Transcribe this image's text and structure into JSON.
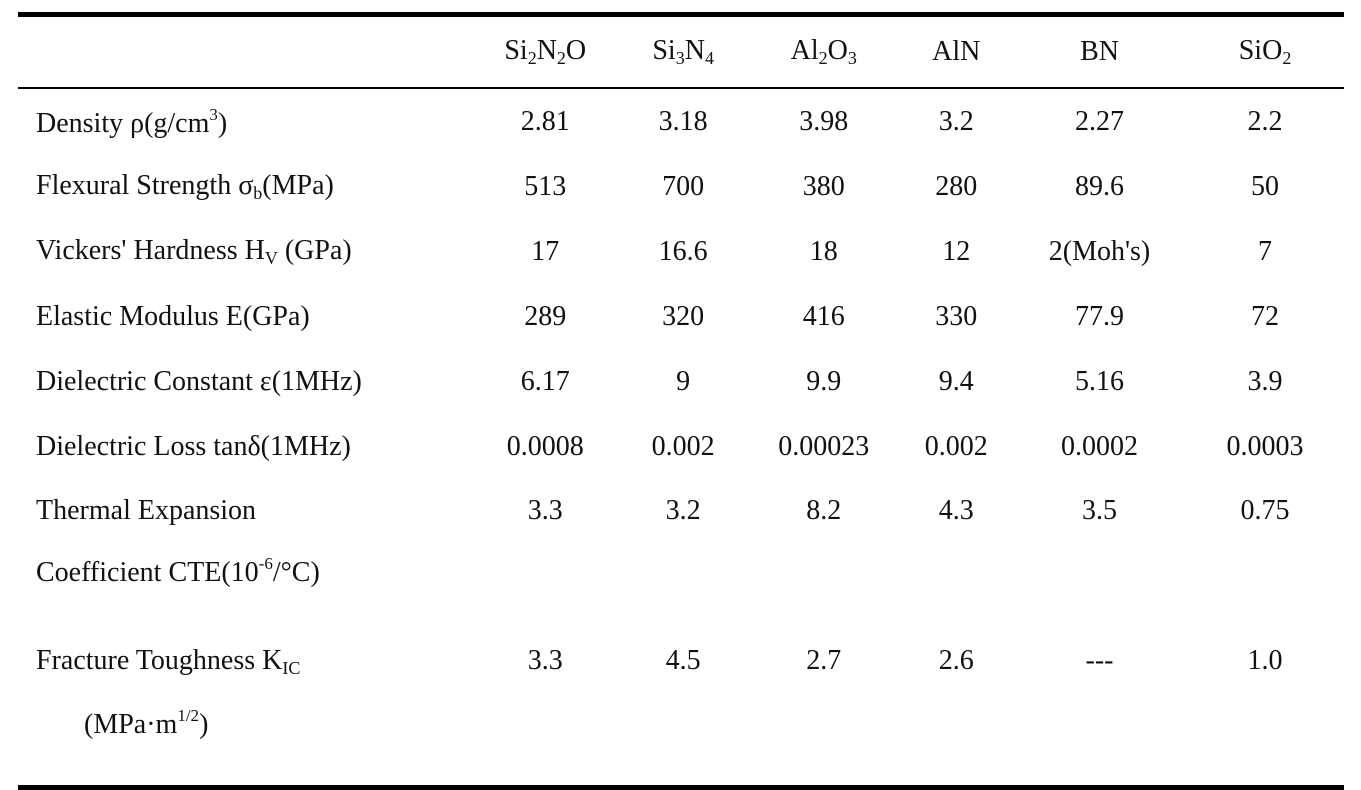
{
  "table": {
    "headers": [
      {
        "base": "Si",
        "parts": [
          [
            "Si",
            ""
          ],
          [
            "2",
            "sub"
          ],
          [
            "N",
            ""
          ],
          [
            "2",
            "sub"
          ],
          [
            "O",
            ""
          ]
        ]
      },
      {
        "base": "Si",
        "parts": [
          [
            "Si",
            ""
          ],
          [
            "3",
            "sub"
          ],
          [
            "N",
            ""
          ],
          [
            "4",
            "sub"
          ]
        ]
      },
      {
        "base": "Al",
        "parts": [
          [
            "Al",
            ""
          ],
          [
            "2",
            "sub"
          ],
          [
            "O",
            ""
          ],
          [
            "3",
            "sub"
          ]
        ]
      },
      {
        "base": "AlN",
        "parts": [
          [
            "AlN",
            ""
          ]
        ]
      },
      {
        "base": "BN",
        "parts": [
          [
            "BN",
            ""
          ]
        ]
      },
      {
        "base": "SiO",
        "parts": [
          [
            "SiO",
            ""
          ],
          [
            "2",
            "sub"
          ]
        ]
      }
    ],
    "rows": [
      {
        "label": [
          [
            "Density ρ(g/cm",
            ""
          ],
          [
            "3",
            "sup"
          ],
          [
            ")",
            ""
          ]
        ],
        "label2": null,
        "values": [
          "2.81",
          "3.18",
          "3.98",
          "3.2",
          "2.27",
          "2.2"
        ]
      },
      {
        "label": [
          [
            "Flexural Strength σ",
            ""
          ],
          [
            "b",
            "sub"
          ],
          [
            "(MPa)",
            ""
          ]
        ],
        "label2": null,
        "values": [
          "513",
          "700",
          "380",
          "280",
          "89.6",
          "50"
        ]
      },
      {
        "label": [
          [
            "Vickers' Hardness H",
            ""
          ],
          [
            "V",
            "sub"
          ],
          [
            " (GPa)",
            ""
          ]
        ],
        "label2": null,
        "values": [
          "17",
          "16.6",
          "18",
          "12",
          "2(Moh's)",
          "7"
        ]
      },
      {
        "label": [
          [
            "Elastic Modulus E(GPa)",
            ""
          ]
        ],
        "label2": null,
        "values": [
          "289",
          "320",
          "416",
          "330",
          "77.9",
          "72"
        ]
      },
      {
        "label": [
          [
            "Dielectric Constant ε(1MHz)",
            ""
          ]
        ],
        "label2": null,
        "values": [
          "6.17",
          "9",
          "9.9",
          "9.4",
          "5.16",
          "3.9"
        ]
      },
      {
        "label": [
          [
            "Dielectric Loss tanδ(1MHz)",
            ""
          ]
        ],
        "label2": null,
        "values": [
          "0.0008",
          "0.002",
          "0.00023",
          "0.002",
          "0.0002",
          "0.0003"
        ]
      },
      {
        "label": [
          [
            "Thermal Expansion",
            ""
          ]
        ],
        "label2": [
          [
            "Coefficient CTE(10",
            ""
          ],
          [
            "-6",
            "sup"
          ],
          [
            "/°C)",
            ""
          ]
        ],
        "label2_indent": false,
        "values": [
          "3.3",
          "3.2",
          "8.2",
          "4.3",
          "3.5",
          "0.75"
        ]
      },
      {
        "label": [
          [
            "Fracture Toughness K",
            ""
          ],
          [
            "IC",
            "sub"
          ]
        ],
        "label2": [
          [
            "(MPa·m",
            ""
          ],
          [
            "1/2",
            "sup"
          ],
          [
            ")",
            ""
          ]
        ],
        "label2_indent": true,
        "values": [
          "3.3",
          "4.5",
          "2.7",
          "2.6",
          "---",
          "1.0"
        ]
      }
    ]
  }
}
